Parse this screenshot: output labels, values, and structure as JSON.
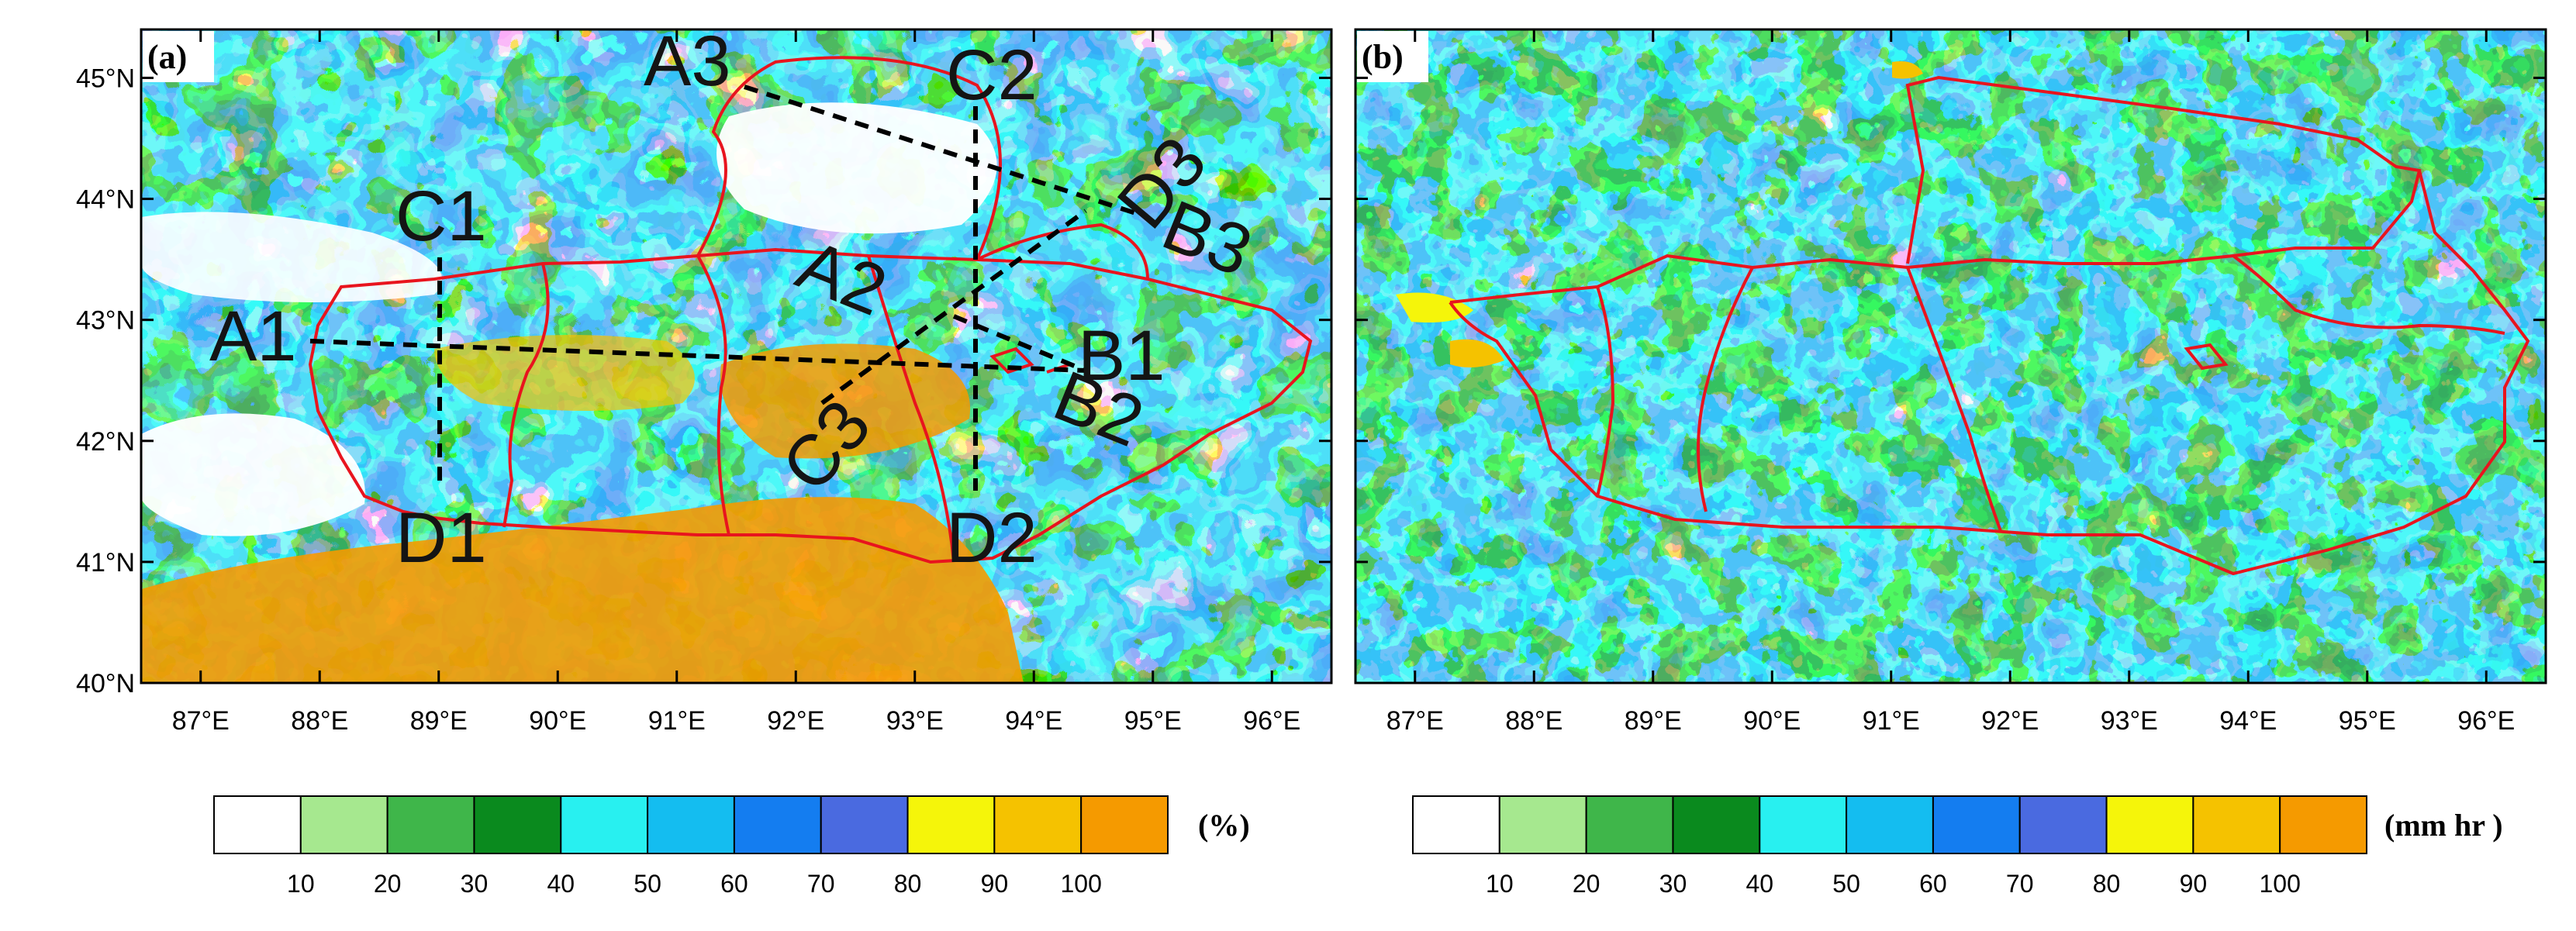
{
  "panels": [
    {
      "label": "(a)",
      "colorbar": {
        "ticks": [
          "10",
          "20",
          "30",
          "40",
          "50",
          "60",
          "70",
          "80",
          "90",
          "100"
        ],
        "unit": "(%)"
      }
    },
    {
      "label": "(b)",
      "colorbar": {
        "ticks": [
          "10",
          "20",
          "30",
          "40",
          "50",
          "60",
          "70",
          "80",
          "90",
          "100"
        ],
        "unit": "(mm hr  )"
      }
    }
  ],
  "axes": {
    "lon_labels": [
      "87°E",
      "88°E",
      "89°E",
      "90°E",
      "91°E",
      "92°E",
      "93°E",
      "94°E",
      "95°E",
      "96°E"
    ],
    "lat_labels": [
      "45°N",
      "44°N",
      "43°N",
      "42°N",
      "41°N",
      "40°N"
    ],
    "lon_range": [
      86.5,
      96.5
    ],
    "lat_range": [
      40.0,
      45.4
    ]
  },
  "colors": {
    "boundary": "#e8141e",
    "scale": [
      "#ffffff",
      "#a6e88f",
      "#3fb64a",
      "#0a8a1e",
      "#28f0f0",
      "#14bdf0",
      "#147df0",
      "#4a6ae0",
      "#f5f50a",
      "#f5c200",
      "#f59a00"
    ]
  },
  "cross_sections": [
    {
      "start": "A1",
      "end": "B1",
      "start_lonlat": [
        88.5,
        42.85
      ],
      "end_lonlat": [
        94.3,
        42.6
      ]
    },
    {
      "start": "A2",
      "end": "B2",
      "start_lonlat": [
        92.2,
        43.1
      ],
      "end_lonlat": [
        94.4,
        42.6
      ]
    },
    {
      "start": "A3",
      "end": "B3",
      "start_lonlat": [
        92.0,
        45.0
      ],
      "end_lonlat": [
        95.3,
        43.8
      ]
    },
    {
      "start": "C1",
      "end": "D1",
      "start_lonlat": [
        89.0,
        43.55
      ],
      "end_lonlat": [
        89.0,
        41.7
      ]
    },
    {
      "start": "C2",
      "end": "D2",
      "start_lonlat": [
        93.5,
        44.85
      ],
      "end_lonlat": [
        93.5,
        41.6
      ]
    },
    {
      "start": "C3",
      "end": "D3",
      "start_lonlat": [
        92.5,
        42.5
      ],
      "end_lonlat": [
        94.3,
        44.2
      ]
    }
  ]
}
